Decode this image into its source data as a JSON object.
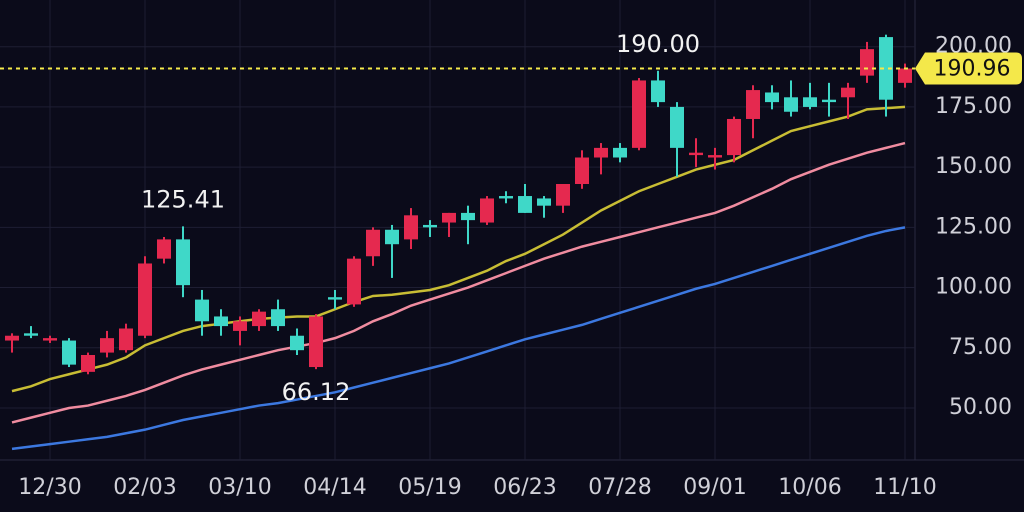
{
  "chart_data": {
    "type": "candlestick",
    "categories": [
      null,
      null,
      "12/30",
      null,
      null,
      null,
      null,
      "02/03",
      null,
      null,
      null,
      null,
      "03/10",
      null,
      null,
      null,
      null,
      "04/14",
      null,
      null,
      null,
      null,
      "05/19",
      null,
      null,
      null,
      null,
      "06/23",
      null,
      null,
      null,
      null,
      "07/28",
      null,
      null,
      null,
      null,
      "09/01",
      null,
      null,
      null,
      null,
      "10/06",
      null,
      null,
      null,
      null,
      "11/10"
    ],
    "open": [
      78,
      81,
      78,
      78,
      65,
      73,
      74,
      80,
      112,
      120,
      95,
      88,
      82,
      84,
      91,
      80,
      67,
      96,
      93,
      113,
      124,
      120,
      126,
      127,
      131,
      127,
      138,
      138,
      137,
      134,
      143,
      154,
      158,
      158,
      186,
      175,
      155,
      154,
      155,
      170,
      181,
      179,
      179,
      178,
      179,
      188,
      204,
      185
    ],
    "high": [
      81,
      84,
      80,
      79,
      73,
      82,
      85,
      113,
      121,
      125.41,
      99,
      91,
      88,
      91,
      95,
      83,
      89,
      99,
      113,
      125,
      126,
      133,
      128,
      131,
      134,
      138,
      140,
      143,
      138,
      143,
      157,
      160,
      160,
      187,
      190,
      177,
      162,
      158,
      171,
      184,
      184,
      186,
      185,
      185,
      185,
      202,
      205,
      193
    ],
    "low": [
      73,
      79,
      77,
      67,
      64,
      71,
      73,
      79,
      110,
      96,
      80,
      80,
      76,
      82,
      82,
      72,
      66.12,
      91,
      92,
      109,
      104,
      116,
      121,
      121,
      118,
      126,
      135,
      131,
      129,
      131,
      141,
      147,
      152,
      157,
      175,
      146,
      150,
      149,
      152,
      162,
      174,
      171,
      174,
      171,
      170,
      185,
      171,
      183
    ],
    "close": [
      80,
      80,
      79,
      68,
      72,
      79,
      83,
      110,
      120,
      101,
      86,
      84,
      86,
      90,
      84,
      74,
      88,
      95,
      112,
      124,
      118,
      130,
      125,
      131,
      128,
      137,
      137,
      131,
      134,
      143,
      154,
      158,
      154,
      186,
      177,
      158,
      156,
      155,
      170,
      182,
      177,
      173,
      175,
      177,
      183,
      199,
      178,
      190.96
    ],
    "up_color": "#e5294f",
    "down_color": "#3fd8c8",
    "lines": [
      {
        "color": "#c8bd34",
        "values": [
          57,
          59,
          62,
          64,
          66,
          68,
          71,
          76,
          79,
          82,
          84,
          85,
          86,
          87,
          87.5,
          88,
          88,
          91,
          94,
          96.5,
          97,
          98,
          99,
          101,
          104,
          107,
          111,
          114,
          118,
          122,
          127,
          132,
          136,
          140,
          143,
          146,
          149,
          151,
          153,
          157,
          161,
          165,
          167,
          169,
          171,
          174,
          174.5,
          175
        ]
      },
      {
        "color": "#f08ca0",
        "values": [
          44,
          46,
          48,
          50,
          51,
          53,
          55,
          57.5,
          60.5,
          63.5,
          66,
          68,
          70,
          72,
          74,
          75.5,
          77,
          79,
          82,
          86,
          89,
          92.5,
          95,
          97.5,
          100,
          103,
          106,
          109,
          112,
          114.5,
          117,
          119,
          121,
          123,
          125,
          127,
          129,
          131,
          134,
          137.5,
          141,
          145,
          148,
          151,
          153.5,
          156,
          158,
          160
        ]
      },
      {
        "color": "#3c78e0",
        "values": [
          33,
          34,
          35,
          36,
          37,
          38,
          39.5,
          41,
          43,
          45,
          46.5,
          48,
          49.5,
          51,
          52,
          53.5,
          55,
          56.5,
          58.5,
          60.5,
          62.5,
          64.5,
          66.5,
          68.5,
          71,
          73.5,
          76,
          78.5,
          80.5,
          82.5,
          84.5,
          87,
          89.5,
          92,
          94.5,
          97,
          99.5,
          101.5,
          104,
          106.5,
          109,
          111.5,
          114,
          116.5,
          119,
          121.5,
          123.5,
          125
        ]
      }
    ],
    "annotations": [
      125.41,
      66.12,
      {
        "value": 190,
        "label": "190.00"
      }
    ],
    "last_price": 190.96,
    "last_price_color": "#f4e84a",
    "ylim": [
      28.4,
      219.4
    ],
    "yticks": [
      {
        "value": 50,
        "label": "50.00"
      },
      {
        "value": 75,
        "label": "75.00"
      },
      {
        "value": 100,
        "label": "100.00"
      },
      {
        "value": 125,
        "label": "125.00"
      },
      {
        "value": 150,
        "label": "150.00"
      },
      {
        "value": 175,
        "label": "175.00"
      },
      {
        "value": 200,
        "label": "200.00"
      }
    ],
    "grid": true
  }
}
